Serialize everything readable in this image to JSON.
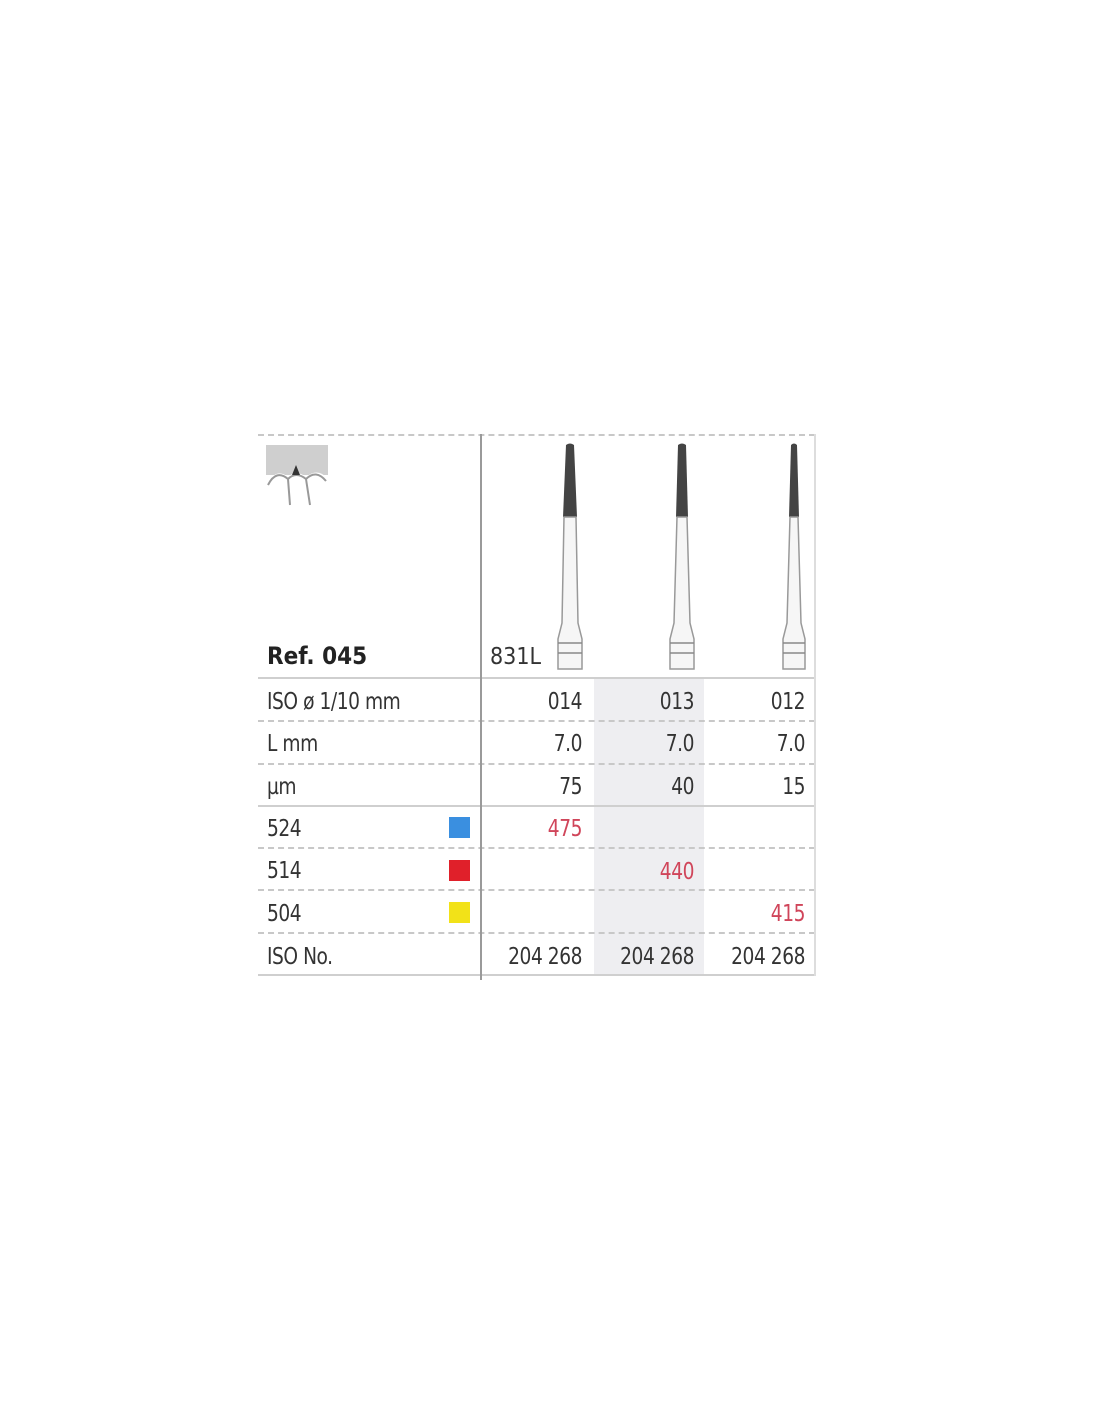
{
  "header": {
    "ref": "Ref. 045",
    "model": "831L"
  },
  "rows": [
    {
      "label": "ISO ø 1/10 mm",
      "values": [
        "014",
        "013",
        "012"
      ]
    },
    {
      "label": "L mm",
      "values": [
        "7.0",
        "7.0",
        "7.0"
      ]
    },
    {
      "label": "µm",
      "values": [
        "75",
        "40",
        "15"
      ]
    }
  ],
  "grit_rows": [
    {
      "label": "524",
      "color": "#3a8fe0",
      "values": [
        "475",
        "",
        ""
      ]
    },
    {
      "label": "514",
      "color": "#e0202a",
      "values": [
        "",
        "440",
        ""
      ]
    },
    {
      "label": "504",
      "color": "#f2e218",
      "values": [
        "",
        "",
        "415"
      ]
    }
  ],
  "iso_row": {
    "label": "ISO No.",
    "values": [
      "204 268",
      "204 268",
      "204 268"
    ]
  },
  "icons": {
    "application": "tooth-interproximal-icon",
    "instrument": "tapered-bur-icon"
  }
}
